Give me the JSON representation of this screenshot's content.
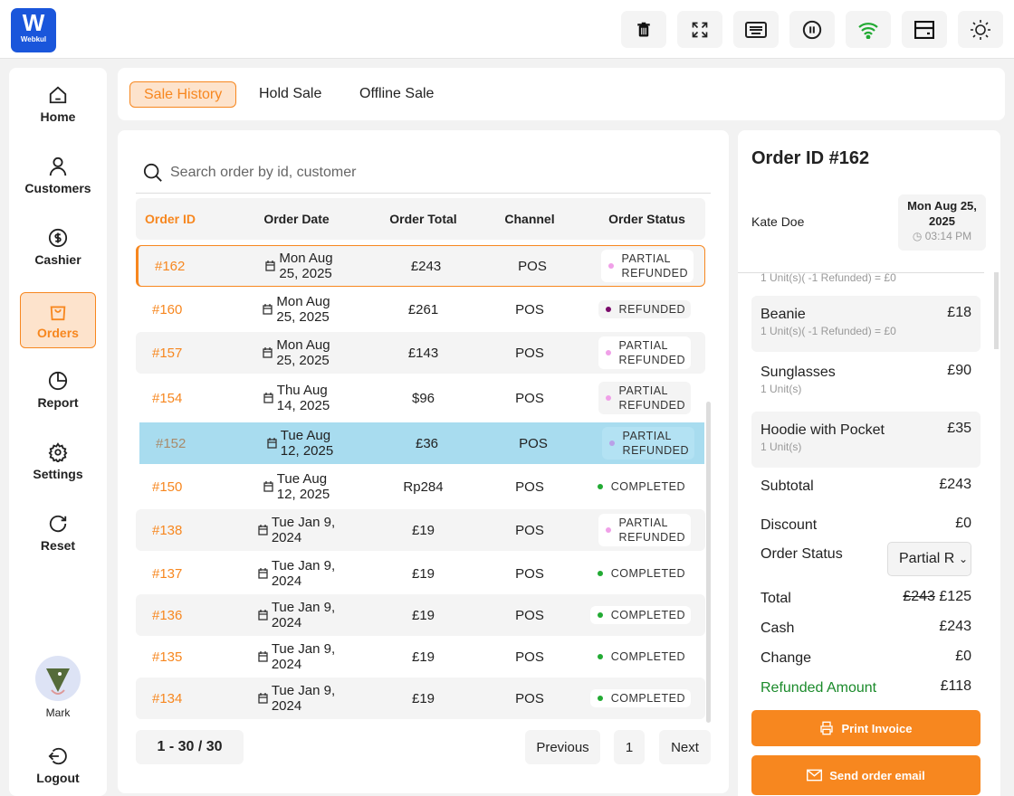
{
  "logo": {
    "text": "W",
    "brand": "Webkul"
  },
  "toolbar": [
    "trash-icon",
    "fullscreen-icon",
    "keyboard-icon",
    "pause-icon",
    "wifi-icon",
    "drawer-icon",
    "sun-icon"
  ],
  "sidebar": {
    "items": [
      {
        "label": "Home"
      },
      {
        "label": "Customers"
      },
      {
        "label": "Cashier"
      },
      {
        "label": "Orders"
      },
      {
        "label": "Report"
      },
      {
        "label": "Settings"
      },
      {
        "label": "Reset"
      }
    ],
    "user": "Mark",
    "logout": "Logout"
  },
  "tabs": [
    "Sale History",
    "Hold Sale",
    "Offline Sale"
  ],
  "search": {
    "placeholder": "Search order by id, customer"
  },
  "table": {
    "headers": [
      "Order ID",
      "Order Date",
      "Order Total",
      "Channel",
      "Order Status"
    ],
    "rows": [
      {
        "id": "#162",
        "date1": "Mon Aug",
        "date2": "25, 2025",
        "total": "£243",
        "channel": "POS",
        "s1": "PARTIAL",
        "s2": "REFUNDED",
        "dot": "#f0a0e8"
      },
      {
        "id": "#160",
        "date1": "Mon Aug",
        "date2": "25, 2025",
        "total": "£261",
        "channel": "POS",
        "s1": "REFUNDED",
        "s2": "",
        "dot": "#7a0a6a"
      },
      {
        "id": "#157",
        "date1": "Mon Aug",
        "date2": "25, 2025",
        "total": "£143",
        "channel": "POS",
        "s1": "PARTIAL",
        "s2": "REFUNDED",
        "dot": "#f0a0e8"
      },
      {
        "id": "#154",
        "date1": "Thu Aug",
        "date2": "14, 2025",
        "total": "$96",
        "channel": "POS",
        "s1": "PARTIAL",
        "s2": "REFUNDED",
        "dot": "#f0a0e8"
      },
      {
        "id": "#152",
        "date1": "Tue Aug",
        "date2": "12, 2025",
        "total": "£36",
        "channel": "POS",
        "s1": "PARTIAL",
        "s2": "REFUNDED",
        "dot": "#b9a0e8"
      },
      {
        "id": "#150",
        "date1": "Tue Aug",
        "date2": "12, 2025",
        "total": "Rp284",
        "channel": "POS",
        "s1": "COMPLETED",
        "s2": "",
        "dot": "#22aa33"
      },
      {
        "id": "#138",
        "date1": "Tue Jan 9,",
        "date2": "2024",
        "total": "£19",
        "channel": "POS",
        "s1": "PARTIAL",
        "s2": "REFUNDED",
        "dot": "#f0a0e8"
      },
      {
        "id": "#137",
        "date1": "Tue Jan 9,",
        "date2": "2024",
        "total": "£19",
        "channel": "POS",
        "s1": "COMPLETED",
        "s2": "",
        "dot": "#22aa33"
      },
      {
        "id": "#136",
        "date1": "Tue Jan 9,",
        "date2": "2024",
        "total": "£19",
        "channel": "POS",
        "s1": "COMPLETED",
        "s2": "",
        "dot": "#22aa33"
      },
      {
        "id": "#135",
        "date1": "Tue Jan 9,",
        "date2": "2024",
        "total": "£19",
        "channel": "POS",
        "s1": "COMPLETED",
        "s2": "",
        "dot": "#22aa33"
      },
      {
        "id": "#134",
        "date1": "Tue Jan 9,",
        "date2": "2024",
        "total": "£19",
        "channel": "POS",
        "s1": "COMPLETED",
        "s2": "",
        "dot": "#22aa33"
      }
    ]
  },
  "pagination": {
    "range": "1 - 30 / 30",
    "previous": "Previous",
    "page": "1",
    "next": "Next"
  },
  "detail": {
    "title": "Order ID #162",
    "customer": "Kate Doe",
    "date1": "Mon Aug 25,",
    "date2": "2025",
    "time": "03:14 PM",
    "cut_line": "1 Unit(s)( -1 Refunded) = £0",
    "items": [
      {
        "name": "Beanie",
        "sub": "1 Unit(s)( -1 Refunded) = £0",
        "price": "£18"
      },
      {
        "name": "Sunglasses",
        "sub": "1 Unit(s)",
        "price": "£90"
      },
      {
        "name": "Hoodie with Pocket",
        "sub": "1 Unit(s)",
        "price": "£35"
      }
    ],
    "subtotal_label": "Subtotal",
    "subtotal": "£243",
    "discount_label": "Discount",
    "discount": "£0",
    "status_label": "Order Status",
    "status_value": "Partial R",
    "total_label": "Total",
    "total_old": "£243",
    "total": "£125",
    "cash_label": "Cash",
    "cash": "£243",
    "change_label": "Change",
    "change": "£0",
    "refunded_label": "Refunded Amount",
    "refunded": "£118",
    "print": "Print Invoice",
    "email": "Send order email"
  },
  "colors": {
    "accent": "#f7871f",
    "brand": "#1a56db",
    "selected_row": "#a8dcef",
    "refund": "#1a8a2a"
  }
}
